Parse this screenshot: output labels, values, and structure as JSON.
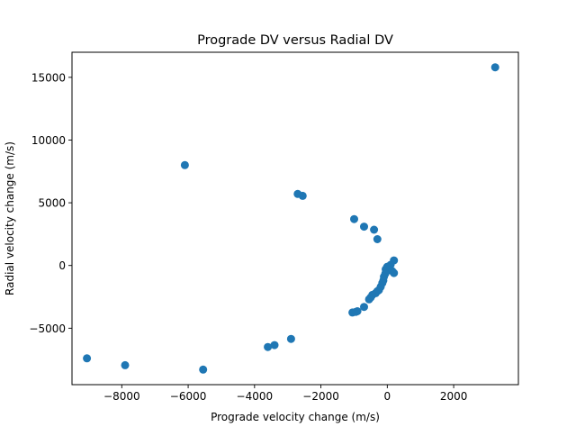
{
  "chart_data": {
    "type": "scatter",
    "title": "Prograde DV versus Radial DV",
    "xlabel": "Prograde velocity change (m/s)",
    "ylabel": "Radial velocity change (m/s)",
    "xlim": [
      -9500,
      3950
    ],
    "ylim": [
      -9500,
      17000
    ],
    "xticks": [
      -8000,
      -6000,
      -4000,
      -2000,
      0,
      2000
    ],
    "xtick_labels": [
      "−8000",
      "−6000",
      "−4000",
      "−2000",
      "0",
      "2000"
    ],
    "yticks": [
      -5000,
      0,
      5000,
      10000,
      15000
    ],
    "ytick_labels": [
      "−5000",
      "0",
      "5000",
      "10000",
      "15000"
    ],
    "grid": false,
    "marker_color": "#1f77b4",
    "points": [
      {
        "x": 3250,
        "y": 15800
      },
      {
        "x": -6100,
        "y": 8000
      },
      {
        "x": -2700,
        "y": 5700
      },
      {
        "x": -2550,
        "y": 5550
      },
      {
        "x": -1000,
        "y": 3700
      },
      {
        "x": -700,
        "y": 3100
      },
      {
        "x": -400,
        "y": 2850
      },
      {
        "x": -300,
        "y": 2100
      },
      {
        "x": 200,
        "y": 400
      },
      {
        "x": 100,
        "y": 50
      },
      {
        "x": 0,
        "y": -100
      },
      {
        "x": -50,
        "y": -300
      },
      {
        "x": 50,
        "y": -350
      },
      {
        "x": 150,
        "y": -450
      },
      {
        "x": 200,
        "y": -600
      },
      {
        "x": -60,
        "y": -650
      },
      {
        "x": -100,
        "y": -900
      },
      {
        "x": -120,
        "y": -1200
      },
      {
        "x": -150,
        "y": -1400
      },
      {
        "x": -200,
        "y": -1700
      },
      {
        "x": -250,
        "y": -1950
      },
      {
        "x": -300,
        "y": -2050
      },
      {
        "x": -350,
        "y": -2200
      },
      {
        "x": -450,
        "y": -2350
      },
      {
        "x": -500,
        "y": -2550
      },
      {
        "x": -550,
        "y": -2700
      },
      {
        "x": -700,
        "y": -3300
      },
      {
        "x": -900,
        "y": -3650
      },
      {
        "x": -950,
        "y": -3700
      },
      {
        "x": -1050,
        "y": -3750
      },
      {
        "x": -2900,
        "y": -5850
      },
      {
        "x": -3400,
        "y": -6350
      },
      {
        "x": -3600,
        "y": -6500
      },
      {
        "x": -5550,
        "y": -8300
      },
      {
        "x": -7900,
        "y": -7950
      },
      {
        "x": -9050,
        "y": -7400
      }
    ]
  }
}
